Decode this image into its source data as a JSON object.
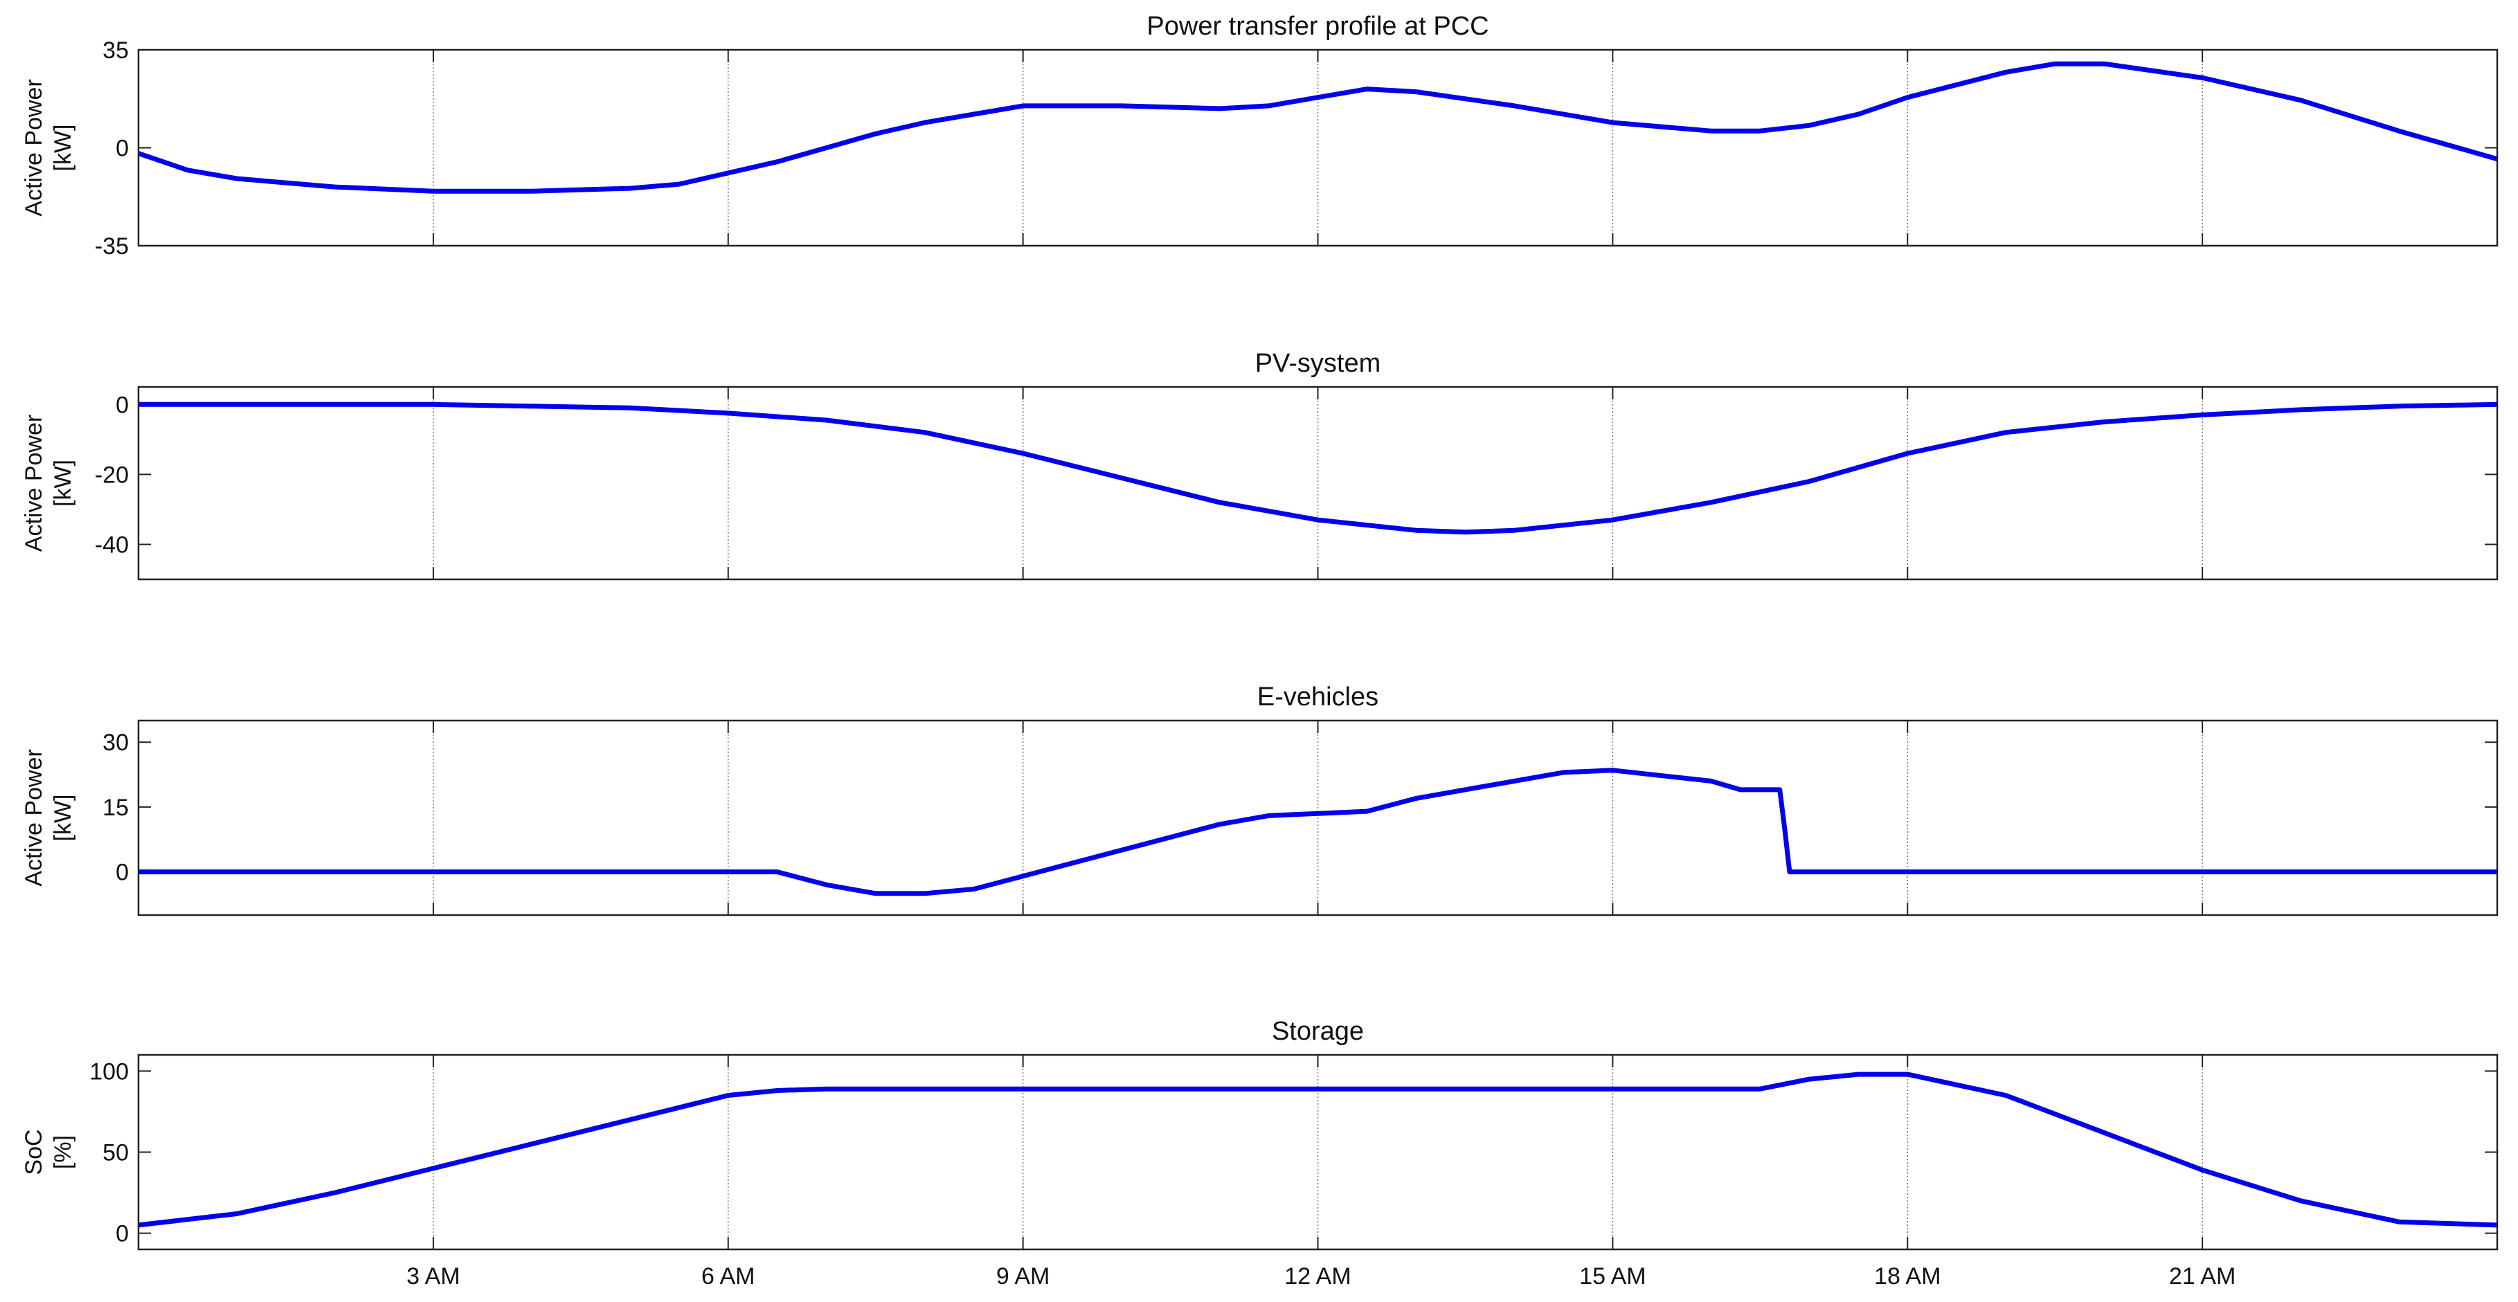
{
  "chart_data": [
    {
      "type": "line",
      "title": "Power transfer profile at PCC",
      "ylabel": [
        "Active Power",
        "[kW]"
      ],
      "xlim": [
        0,
        24
      ],
      "xticks": [
        3,
        6,
        9,
        12,
        15,
        18,
        21
      ],
      "ylim": [
        -35,
        35
      ],
      "yticks": [
        -35,
        0,
        35
      ],
      "grid": true,
      "x": [
        0,
        0.5,
        1,
        2,
        3,
        4,
        5,
        5.5,
        6,
        6.5,
        7,
        7.5,
        8,
        8.5,
        9,
        10,
        11,
        11.5,
        12,
        12.5,
        13,
        14,
        15,
        16,
        16.5,
        17,
        17.5,
        18,
        19,
        19.5,
        20,
        21,
        22,
        23,
        24
      ],
      "series": [
        {
          "color": "#0000ee",
          "values": [
            -2,
            -8,
            -11,
            -14,
            -15.5,
            -15.5,
            -14.5,
            -13,
            -9,
            -5,
            0,
            5,
            9,
            12,
            15,
            15,
            14,
            15,
            18,
            21,
            20,
            15,
            9,
            6,
            6,
            8,
            12,
            18,
            27,
            30,
            30,
            25,
            17,
            6,
            -4
          ]
        }
      ]
    },
    {
      "type": "line",
      "title": "PV-system",
      "ylabel": [
        "Active Power",
        "[kW]"
      ],
      "xlim": [
        0,
        24
      ],
      "xticks": [
        3,
        6,
        9,
        12,
        15,
        18,
        21
      ],
      "ylim": [
        -50,
        5
      ],
      "yticks": [
        -40,
        -20,
        0
      ],
      "grid": true,
      "x": [
        0,
        1,
        2,
        3,
        4,
        5,
        6,
        7,
        8,
        9,
        10,
        11,
        12,
        13,
        13.5,
        14,
        15,
        16,
        17,
        18,
        19,
        20,
        21,
        22,
        23,
        24
      ],
      "series": [
        {
          "color": "#0000ee",
          "values": [
            0,
            0,
            0,
            0,
            -0.5,
            -1,
            -2.5,
            -4.5,
            -8,
            -14,
            -21,
            -28,
            -33,
            -36,
            -36.5,
            -36,
            -33,
            -28,
            -22,
            -14,
            -8,
            -5,
            -3,
            -1.5,
            -0.5,
            0
          ]
        }
      ]
    },
    {
      "type": "line",
      "title": "E-vehicles",
      "ylabel": [
        "Active Power",
        "[kW]"
      ],
      "xlim": [
        0,
        24
      ],
      "xticks": [
        3,
        6,
        9,
        12,
        15,
        18,
        21
      ],
      "ylim": [
        -10,
        35
      ],
      "yticks": [
        0,
        15,
        30
      ],
      "grid": true,
      "x": [
        0,
        6.5,
        7,
        7.5,
        8,
        8.5,
        9,
        10,
        11,
        11.5,
        12,
        12.5,
        13,
        14,
        14.5,
        15,
        16,
        16.3,
        16.7,
        16.75,
        16.8,
        24
      ],
      "series": [
        {
          "color": "#0000ee",
          "values": [
            0,
            0,
            -3,
            -5,
            -5,
            -4,
            -1,
            5,
            11,
            13,
            13.5,
            14,
            17,
            21,
            23,
            23.5,
            21,
            19,
            19,
            10,
            0,
            0
          ]
        }
      ]
    },
    {
      "type": "line",
      "title": "Storage",
      "ylabel": [
        "SoC",
        "[%]"
      ],
      "xlim": [
        0,
        24
      ],
      "xticks": [
        {
          "value": 3,
          "label": "3 AM"
        },
        {
          "value": 6,
          "label": "6 AM"
        },
        {
          "value": 9,
          "label": "9 AM"
        },
        {
          "value": 12,
          "label": "12 AM"
        },
        {
          "value": 15,
          "label": "15 AM"
        },
        {
          "value": 18,
          "label": "18 AM"
        },
        {
          "value": 21,
          "label": "21 AM"
        }
      ],
      "ylim": [
        -10,
        110
      ],
      "yticks": [
        0,
        50,
        100
      ],
      "grid": true,
      "x": [
        0,
        1,
        2,
        3,
        4,
        5,
        6,
        6.5,
        7,
        16.5,
        17,
        17.5,
        18,
        19,
        20,
        21,
        22,
        23,
        24
      ],
      "series": [
        {
          "color": "#0000ee",
          "values": [
            5,
            12,
            25,
            40,
            55,
            70,
            85,
            88,
            89,
            89,
            95,
            98,
            98,
            85,
            62,
            39,
            20,
            7,
            5
          ]
        }
      ]
    }
  ]
}
